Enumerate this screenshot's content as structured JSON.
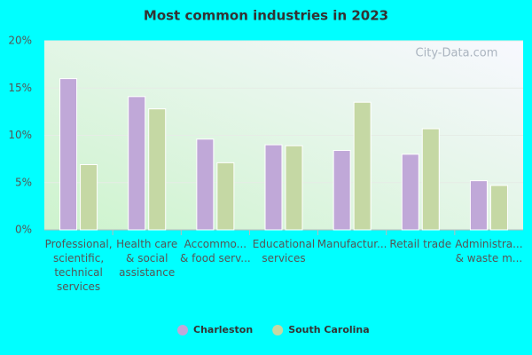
{
  "chart_data": {
    "type": "bar",
    "title": "Most common industries in 2023",
    "watermark": "City-Data.com",
    "categories": [
      "Professional,\nscientific,\ntechnical\nservices",
      "Health care\n& social\nassistance",
      "Accommo...\n& food serv...",
      "Educational\nservices",
      "Manufactur...",
      "Retail trade",
      "Administra...\n& waste m..."
    ],
    "series": [
      {
        "name": "Charleston",
        "color": "#c0a8d8",
        "values": [
          16.0,
          14.1,
          9.6,
          9.0,
          8.4,
          8.0,
          5.2
        ]
      },
      {
        "name": "South Carolina",
        "color": "#c5d8a4",
        "values": [
          6.9,
          12.8,
          7.1,
          8.9,
          13.5,
          10.7,
          4.7
        ]
      }
    ],
    "ylim": [
      0,
      20
    ],
    "yticks": [
      {
        "value": 0,
        "label": "0%"
      },
      {
        "value": 5,
        "label": "5%"
      },
      {
        "value": 10,
        "label": "10%"
      },
      {
        "value": 15,
        "label": "15%"
      },
      {
        "value": 20,
        "label": "20%"
      }
    ],
    "grid": true
  }
}
